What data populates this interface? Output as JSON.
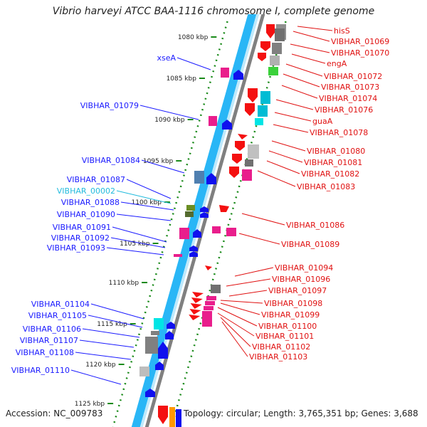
{
  "title": "Vibrio harveyi ATCC BAA-1116 chromosome I, complete genome",
  "footer": {
    "accession": "Accession: NC_009783",
    "summary": "Topology: circular; Length: 3,765,351 bp; Genes: 3,688"
  },
  "scale_labels": [
    "1080 kbp",
    "1085 kbp",
    "1090 kbp",
    "1095 kbp",
    "1100 kbp",
    "1105 kbp",
    "1110 kbp",
    "1115 kbp",
    "1120 kbp",
    "1125 kbp"
  ],
  "left_genes": [
    {
      "label": "xseA",
      "color": "#1a1aff"
    },
    {
      "label": "VIBHAR_01079",
      "color": "#1a1aff"
    },
    {
      "label": "VIBHAR_01084",
      "color": "#1a1aff"
    },
    {
      "label": "VIBHAR_01087",
      "color": "#1a1aff"
    },
    {
      "label": "VIBHAR_00002",
      "color": "#22bbdd"
    },
    {
      "label": "VIBHAR_01088",
      "color": "#1a1aff"
    },
    {
      "label": "VIBHAR_01090",
      "color": "#1a1aff"
    },
    {
      "label": "VIBHAR_01091",
      "color": "#1a1aff"
    },
    {
      "label": "VIBHAR_01092",
      "color": "#1a1aff"
    },
    {
      "label": "VIBHAR_01093",
      "color": "#1a1aff"
    },
    {
      "label": "VIBHAR_01104",
      "color": "#1a1aff"
    },
    {
      "label": "VIBHAR_01105",
      "color": "#1a1aff"
    },
    {
      "label": "VIBHAR_01106",
      "color": "#1a1aff"
    },
    {
      "label": "VIBHAR_01107",
      "color": "#1a1aff"
    },
    {
      "label": "VIBHAR_01108",
      "color": "#1a1aff"
    },
    {
      "label": "VIBHAR_01110",
      "color": "#1a1aff"
    }
  ],
  "right_genes": [
    {
      "label": "hisS",
      "color": "#e01010"
    },
    {
      "label": "VIBHAR_01069",
      "color": "#e01010"
    },
    {
      "label": "VIBHAR_01070",
      "color": "#e01010"
    },
    {
      "label": "engA",
      "color": "#e01010"
    },
    {
      "label": "VIBHAR_01072",
      "color": "#e01010"
    },
    {
      "label": "VIBHAR_01073",
      "color": "#e01010"
    },
    {
      "label": "VIBHAR_01074",
      "color": "#e01010"
    },
    {
      "label": "VIBHAR_01076",
      "color": "#e01010"
    },
    {
      "label": "guaA",
      "color": "#e01010"
    },
    {
      "label": "VIBHAR_01078",
      "color": "#e01010"
    },
    {
      "label": "VIBHAR_01080",
      "color": "#e01010"
    },
    {
      "label": "VIBHAR_01081",
      "color": "#e01010"
    },
    {
      "label": "VIBHAR_01082",
      "color": "#e01010"
    },
    {
      "label": "VIBHAR_01083",
      "color": "#e01010"
    },
    {
      "label": "VIBHAR_01086",
      "color": "#e01010"
    },
    {
      "label": "VIBHAR_01089",
      "color": "#e01010"
    },
    {
      "label": "VIBHAR_01094",
      "color": "#e01010"
    },
    {
      "label": "VIBHAR_01096",
      "color": "#e01010"
    },
    {
      "label": "VIBHAR_01097",
      "color": "#e01010"
    },
    {
      "label": "VIBHAR_01098",
      "color": "#e01010"
    },
    {
      "label": "VIBHAR_01099",
      "color": "#e01010"
    },
    {
      "label": "VIBHAR_01100",
      "color": "#e01010"
    },
    {
      "label": "VIBHAR_01101",
      "color": "#e01010"
    },
    {
      "label": "VIBHAR_01102",
      "color": "#e01010"
    },
    {
      "label": "VIBHAR_01103",
      "color": "#e01010"
    }
  ],
  "colors": {
    "backbone_cyan": "#29b6f6",
    "backbone_light": "#bfe9fb",
    "backbone_gray": "#808080",
    "dotted_green": "#1a8a1a",
    "scale_tick": "#1a8a1a"
  }
}
